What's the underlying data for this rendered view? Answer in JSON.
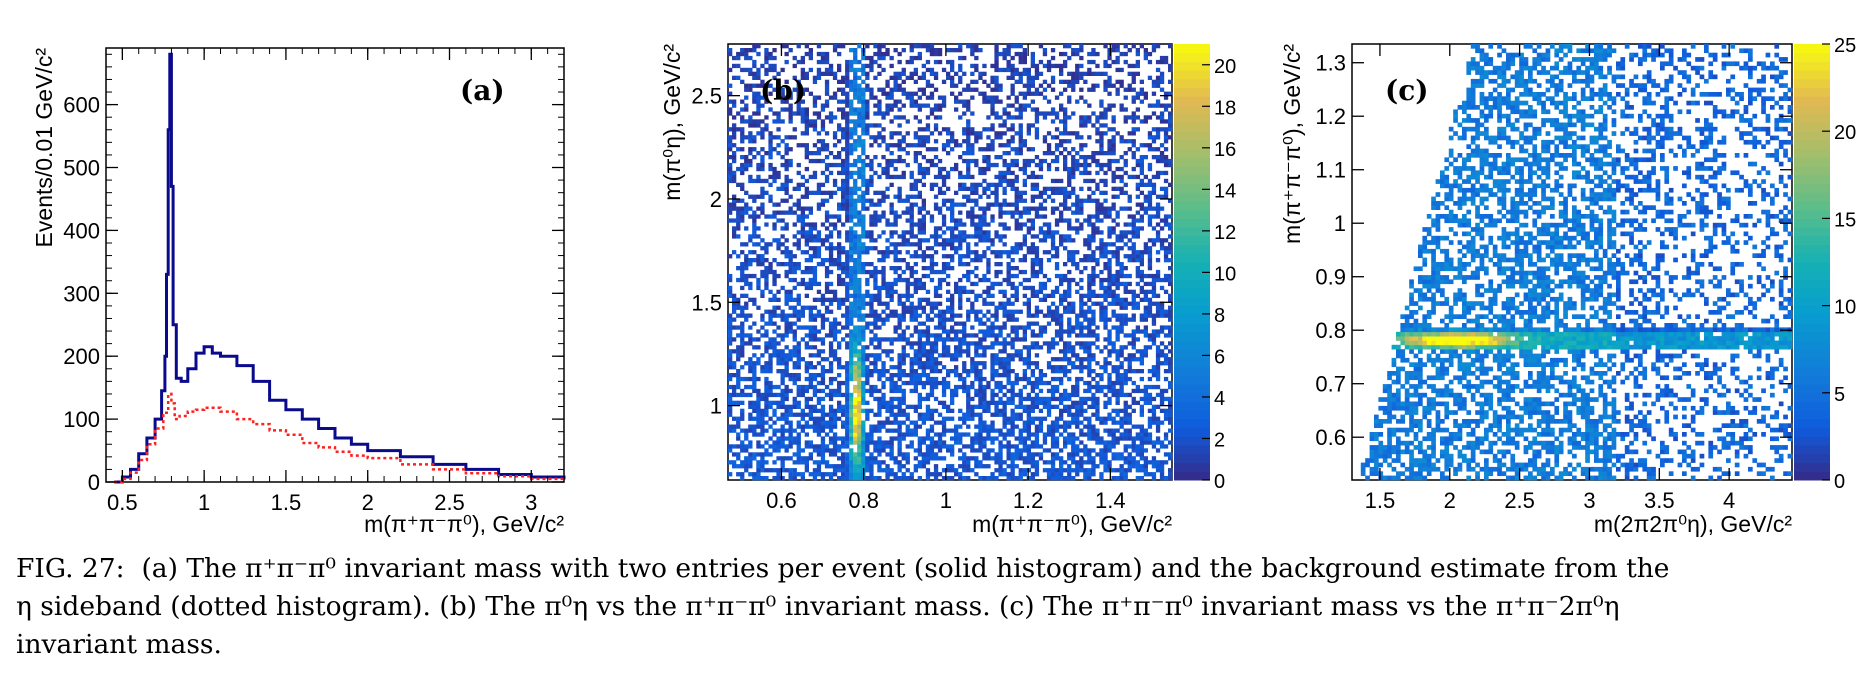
{
  "chart_data": [
    {
      "type": "line",
      "panel_label": "(a)",
      "xlabel": "m(π⁺π⁻π⁰), GeV/c²",
      "ylabel": "Events/0.01 GeV/c²",
      "xlim": [
        0.4,
        3.2
      ],
      "ylim": [
        0,
        690
      ],
      "xticks": [
        0.5,
        1,
        1.5,
        2,
        2.5,
        3
      ],
      "xtick_labels": [
        "0.5",
        "1",
        "1.5",
        "2",
        "2.5",
        "3"
      ],
      "yticks": [
        0,
        100,
        200,
        300,
        400,
        500,
        600
      ],
      "ytick_labels": [
        "0",
        "100",
        "200",
        "300",
        "400",
        "500",
        "600"
      ],
      "series": [
        {
          "color": "#0a0a8c",
          "style": "solid",
          "x": [
            0.45,
            0.5,
            0.55,
            0.6,
            0.65,
            0.7,
            0.74,
            0.76,
            0.77,
            0.78,
            0.79,
            0.8,
            0.81,
            0.83,
            0.86,
            0.9,
            0.95,
            1.0,
            1.05,
            1.1,
            1.2,
            1.3,
            1.4,
            1.5,
            1.6,
            1.7,
            1.8,
            1.9,
            2.0,
            2.2,
            2.4,
            2.6,
            2.8,
            3.0,
            3.2
          ],
          "y": [
            0,
            8,
            20,
            45,
            70,
            100,
            145,
            200,
            330,
            560,
            680,
            470,
            250,
            165,
            160,
            180,
            205,
            215,
            205,
            200,
            185,
            160,
            130,
            115,
            100,
            85,
            70,
            60,
            50,
            40,
            28,
            20,
            12,
            8,
            4
          ]
        },
        {
          "color": "#ff2020",
          "style": "dotted",
          "x": [
            0.45,
            0.5,
            0.55,
            0.6,
            0.65,
            0.7,
            0.75,
            0.78,
            0.8,
            0.82,
            0.85,
            0.9,
            0.95,
            1.0,
            1.1,
            1.2,
            1.3,
            1.4,
            1.5,
            1.6,
            1.7,
            1.8,
            1.9,
            2.0,
            2.2,
            2.4,
            2.6,
            2.8,
            3.0,
            3.2
          ],
          "y": [
            0,
            5,
            15,
            35,
            60,
            85,
            110,
            140,
            125,
            100,
            105,
            112,
            115,
            118,
            112,
            100,
            92,
            82,
            75,
            62,
            55,
            48,
            42,
            38,
            28,
            20,
            14,
            9,
            5,
            2
          ]
        }
      ]
    },
    {
      "type": "heatmap",
      "panel_label": "(b)",
      "xlabel": "m(π⁺π⁻π⁰), GeV/c²",
      "ylabel": "m(π⁰η), GeV/c²",
      "xlim": [
        0.47,
        1.55
      ],
      "ylim": [
        0.64,
        2.75
      ],
      "xticks": [
        0.6,
        0.8,
        1.0,
        1.2,
        1.4
      ],
      "xtick_labels": [
        "0.6",
        "0.8",
        "1",
        "1.2",
        "1.4"
      ],
      "yticks": [
        1.0,
        1.5,
        2.0,
        2.5
      ],
      "ytick_labels": [
        "1",
        "1.5",
        "2",
        "2.5"
      ],
      "z_range": [
        0,
        21
      ],
      "colorbar_ticks": [
        0,
        2,
        4,
        6,
        8,
        10,
        12,
        14,
        16,
        18,
        20
      ],
      "colorbar_tick_labels": [
        "0",
        "2",
        "4",
        "6",
        "8",
        "10",
        "12",
        "14",
        "16",
        "18",
        "20"
      ],
      "hotspot": {
        "x": 0.782,
        "y_center": 0.98,
        "y_width": 0.25,
        "peak": 20
      },
      "palette": "kBird"
    },
    {
      "type": "heatmap",
      "panel_label": "(c)",
      "xlabel": "m(2π2π⁰η), GeV/c²",
      "ylabel": "m(π⁺π⁻π⁰), GeV/c²",
      "xlim": [
        1.3,
        4.45
      ],
      "ylim": [
        0.52,
        1.335
      ],
      "xticks": [
        1.5,
        2.0,
        2.5,
        3.0,
        3.5,
        4.0
      ],
      "xtick_labels": [
        "1.5",
        "2",
        "2.5",
        "3",
        "3.5",
        "4"
      ],
      "yticks": [
        0.6,
        0.7,
        0.8,
        0.9,
        1.0,
        1.1,
        1.2,
        1.3
      ],
      "ytick_labels": [
        "0.6",
        "0.7",
        "0.8",
        "0.9",
        "1",
        "1.1",
        "1.2",
        "1.3"
      ],
      "z_range": [
        0,
        25
      ],
      "colorbar_ticks": [
        0,
        5,
        10,
        15,
        20,
        25
      ],
      "colorbar_tick_labels": [
        "0",
        "5",
        "10",
        "15",
        "20",
        "25"
      ],
      "hotspot": {
        "y": 0.782,
        "x_center": 2.05,
        "x_width": 0.35,
        "peak": 25
      },
      "palette": "kBird"
    }
  ],
  "caption": {
    "figure_label": "FIG. 27:",
    "text_a": "(a) The π⁺π⁻π⁰ invariant mass with two entries per event (solid histogram) and the background estimate from the",
    "text_b": "η sideband (dotted histogram). (b) The π⁰η vs the π⁺π⁻π⁰ invariant mass. (c) The π⁺π⁻π⁰ invariant mass vs the π⁺π⁻2π⁰η",
    "text_c": "invariant mass."
  }
}
